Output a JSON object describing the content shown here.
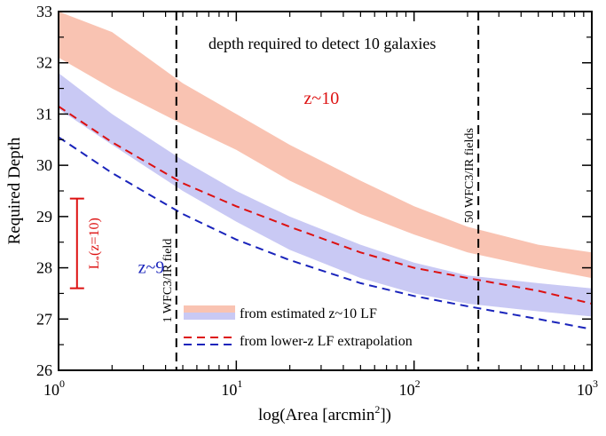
{
  "chart_data": {
    "type": "area",
    "title": "depth required to detect 10 galaxies",
    "xlabel_main": "log(Area [arcmin",
    "xlabel_sup": "2",
    "xlabel_end": "])",
    "ylabel": "Required Depth",
    "xscale": "log",
    "xlim": [
      1,
      1000
    ],
    "ylim": [
      26,
      33
    ],
    "yticks": [
      26,
      27,
      28,
      29,
      30,
      31,
      32,
      33
    ],
    "ytick_labels": [
      "26",
      "27",
      "28",
      "29",
      "30",
      "31",
      "32",
      "33"
    ],
    "xtick_labels": [
      {
        "value": 1,
        "base": "10",
        "exp": "0"
      },
      {
        "value": 10,
        "base": "10",
        "exp": "1"
      },
      {
        "value": 100,
        "base": "10",
        "exp": "2"
      },
      {
        "value": 1000,
        "base": "10",
        "exp": "3"
      }
    ],
    "bands": [
      {
        "name": "z~10 band",
        "color": "#f9c3b2",
        "x": [
          1,
          2,
          5,
          10,
          20,
          50,
          100,
          200,
          500,
          1000
        ],
        "upper": [
          33.3,
          32.6,
          31.6,
          31.0,
          30.4,
          29.7,
          29.2,
          28.8,
          28.45,
          28.3
        ],
        "lower": [
          32.1,
          31.5,
          30.8,
          30.3,
          29.7,
          29.05,
          28.65,
          28.3,
          28.0,
          27.8
        ]
      },
      {
        "name": "z~9 band",
        "color": "#c9c9f4",
        "x": [
          1,
          2,
          5,
          10,
          20,
          50,
          100,
          200,
          500,
          1000
        ],
        "upper": [
          31.8,
          31.0,
          30.1,
          29.5,
          29.0,
          28.45,
          28.1,
          27.85,
          27.7,
          27.6
        ],
        "lower": [
          31.1,
          30.4,
          29.5,
          28.9,
          28.35,
          27.8,
          27.5,
          27.3,
          27.15,
          27.05
        ]
      }
    ],
    "dashed_series": [
      {
        "name": "z~10 extrapolation",
        "color": "#dd1111",
        "x": [
          1,
          2,
          5,
          10,
          20,
          50,
          100,
          200,
          500,
          1000
        ],
        "y": [
          31.15,
          30.45,
          29.65,
          29.2,
          28.8,
          28.3,
          28.0,
          27.8,
          27.55,
          27.3
        ]
      },
      {
        "name": "z~9 extrapolation",
        "color": "#1a24bb",
        "x": [
          1,
          2,
          5,
          10,
          20,
          50,
          100,
          200,
          500,
          1000
        ],
        "y": [
          30.55,
          29.85,
          29.05,
          28.55,
          28.15,
          27.7,
          27.45,
          27.25,
          27.0,
          26.8
        ]
      }
    ],
    "vlines": [
      {
        "x": 4.6,
        "label": "1 WFC3/IR field"
      },
      {
        "x": 230,
        "label": "50 WFC3/IR fields"
      }
    ],
    "annotations": [
      {
        "text": "z~10",
        "color": "#dd1111",
        "x": 24,
        "y": 31.2
      },
      {
        "text": "z~9",
        "color": "#1a24bb",
        "x": 2.8,
        "y": 27.9
      }
    ],
    "lstar_bar": {
      "label": "L",
      "sub": "*",
      "rest": "(z=10)",
      "color": "#dd1111",
      "x": 1.27,
      "y_top": 29.35,
      "y_bottom": 27.6
    },
    "legend": {
      "position": "bottom-center",
      "entries": [
        {
          "label": "from estimated z~10 LF",
          "kind": "band"
        },
        {
          "label": "from lower-z LF extrapolation",
          "kind": "dashed"
        }
      ]
    }
  }
}
